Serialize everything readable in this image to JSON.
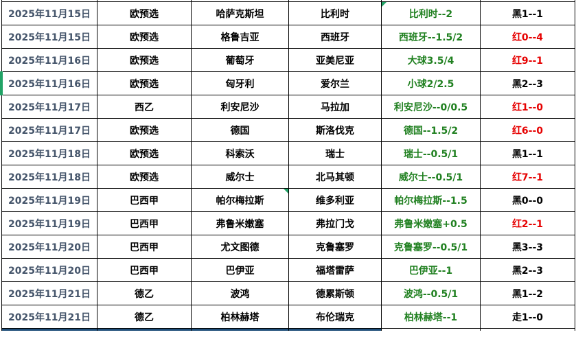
{
  "colors": {
    "date_text": "#44546A",
    "handicap_text": "#208020",
    "result_red": "#e60000",
    "result_black": "#000000",
    "marker_green": "#21a366",
    "bottom_band": "#1F4E79",
    "border": "#000000"
  },
  "columns": {
    "widths": [
      139,
      137,
      142,
      135,
      144,
      138
    ],
    "keys": [
      "date",
      "league",
      "home",
      "away",
      "handicap",
      "result"
    ]
  },
  "rows": [
    {
      "date": "2025年11月15日",
      "league": "欧预选",
      "home": "哈萨克斯坦",
      "away": "比利时",
      "handicap": "比利时--2",
      "result": "黑1--1",
      "result_color": "black",
      "handicap_flag": true,
      "home_flag": false,
      "left_marker": false
    },
    {
      "date": "2025年11月15日",
      "league": "欧预选",
      "home": "格鲁吉亚",
      "away": "西班牙",
      "handicap": "西班牙--1.5/2",
      "result": "红0--4",
      "result_color": "red",
      "handicap_flag": false,
      "home_flag": false,
      "left_marker": false
    },
    {
      "date": "2025年11月16日",
      "league": "欧预选",
      "home": "葡萄牙",
      "away": "亚美尼亚",
      "handicap": "大球3.5/4",
      "result": "红9--1",
      "result_color": "red",
      "handicap_flag": false,
      "home_flag": false,
      "left_marker": false
    },
    {
      "date": "2025年11月16日",
      "league": "欧预选",
      "home": "匈牙利",
      "away": "爱尔兰",
      "handicap": "小球2/2.5",
      "result": "黑2--3",
      "result_color": "black",
      "handicap_flag": false,
      "home_flag": false,
      "left_marker": true
    },
    {
      "date": "2025年11月17日",
      "league": "西乙",
      "home": "利安尼沙",
      "away": "马拉加",
      "handicap": "利安尼沙--0/0.5",
      "result": "红1--0",
      "result_color": "red",
      "handicap_flag": false,
      "home_flag": false,
      "left_marker": false
    },
    {
      "date": "2025年11月17日",
      "league": "欧预选",
      "home": "德国",
      "away": "斯洛伐克",
      "handicap": "德国--1.5/2",
      "result": "红6--0",
      "result_color": "red",
      "handicap_flag": false,
      "home_flag": false,
      "left_marker": false
    },
    {
      "date": "2025年11月18日",
      "league": "欧预选",
      "home": "科索沃",
      "away": "瑞士",
      "handicap": "瑞士--0.5/1",
      "result": "黑1--1",
      "result_color": "black",
      "handicap_flag": false,
      "home_flag": false,
      "left_marker": false
    },
    {
      "date": "2025年11月18日",
      "league": "欧预选",
      "home": "威尔士",
      "away": "北马其顿",
      "handicap": "威尔士--0.5/1",
      "result": "红7--1",
      "result_color": "red",
      "handicap_flag": false,
      "home_flag": false,
      "left_marker": false
    },
    {
      "date": "2025年11月19日",
      "league": "巴西甲",
      "home": "帕尔梅拉斯",
      "away": "维多利亚",
      "handicap": "帕尔梅拉斯--1.5",
      "result": "黑0--0",
      "result_color": "black",
      "handicap_flag": false,
      "home_flag": true,
      "left_marker": false
    },
    {
      "date": "2025年11月19日",
      "league": "巴西甲",
      "home": "弗鲁米嫩塞",
      "away": "弗拉门戈",
      "handicap": "弗鲁米嫩塞+0.5",
      "result": "红2--1",
      "result_color": "red",
      "handicap_flag": false,
      "home_flag": false,
      "left_marker": false
    },
    {
      "date": "2025年11月20日",
      "league": "巴西甲",
      "home": "尤文图德",
      "away": "克鲁塞罗",
      "handicap": "克鲁塞罗--0.5/1",
      "result": "黑3--3",
      "result_color": "black",
      "handicap_flag": false,
      "home_flag": false,
      "left_marker": false
    },
    {
      "date": "2025年11月20日",
      "league": "巴西甲",
      "home": "巴伊亚",
      "away": "福塔雷萨",
      "handicap": "巴伊亚--1",
      "result": "黑2--3",
      "result_color": "black",
      "handicap_flag": false,
      "home_flag": false,
      "left_marker": false
    },
    {
      "date": "2025年11月21日",
      "league": "德乙",
      "home": "波鸿",
      "away": "德累斯顿",
      "handicap": "波鸿--0.5/1",
      "result": "黑1--2",
      "result_color": "black",
      "handicap_flag": false,
      "home_flag": false,
      "left_marker": false
    },
    {
      "date": "2025年11月21日",
      "league": "德乙",
      "home": "柏林赫塔",
      "away": "布伦瑞克",
      "handicap": "柏林赫塔--1",
      "result": "走1--0",
      "result_color": "black",
      "handicap_flag": false,
      "home_flag": false,
      "left_marker": false
    }
  ],
  "bottom_partial_row": {
    "navy_cell_count": 4
  }
}
